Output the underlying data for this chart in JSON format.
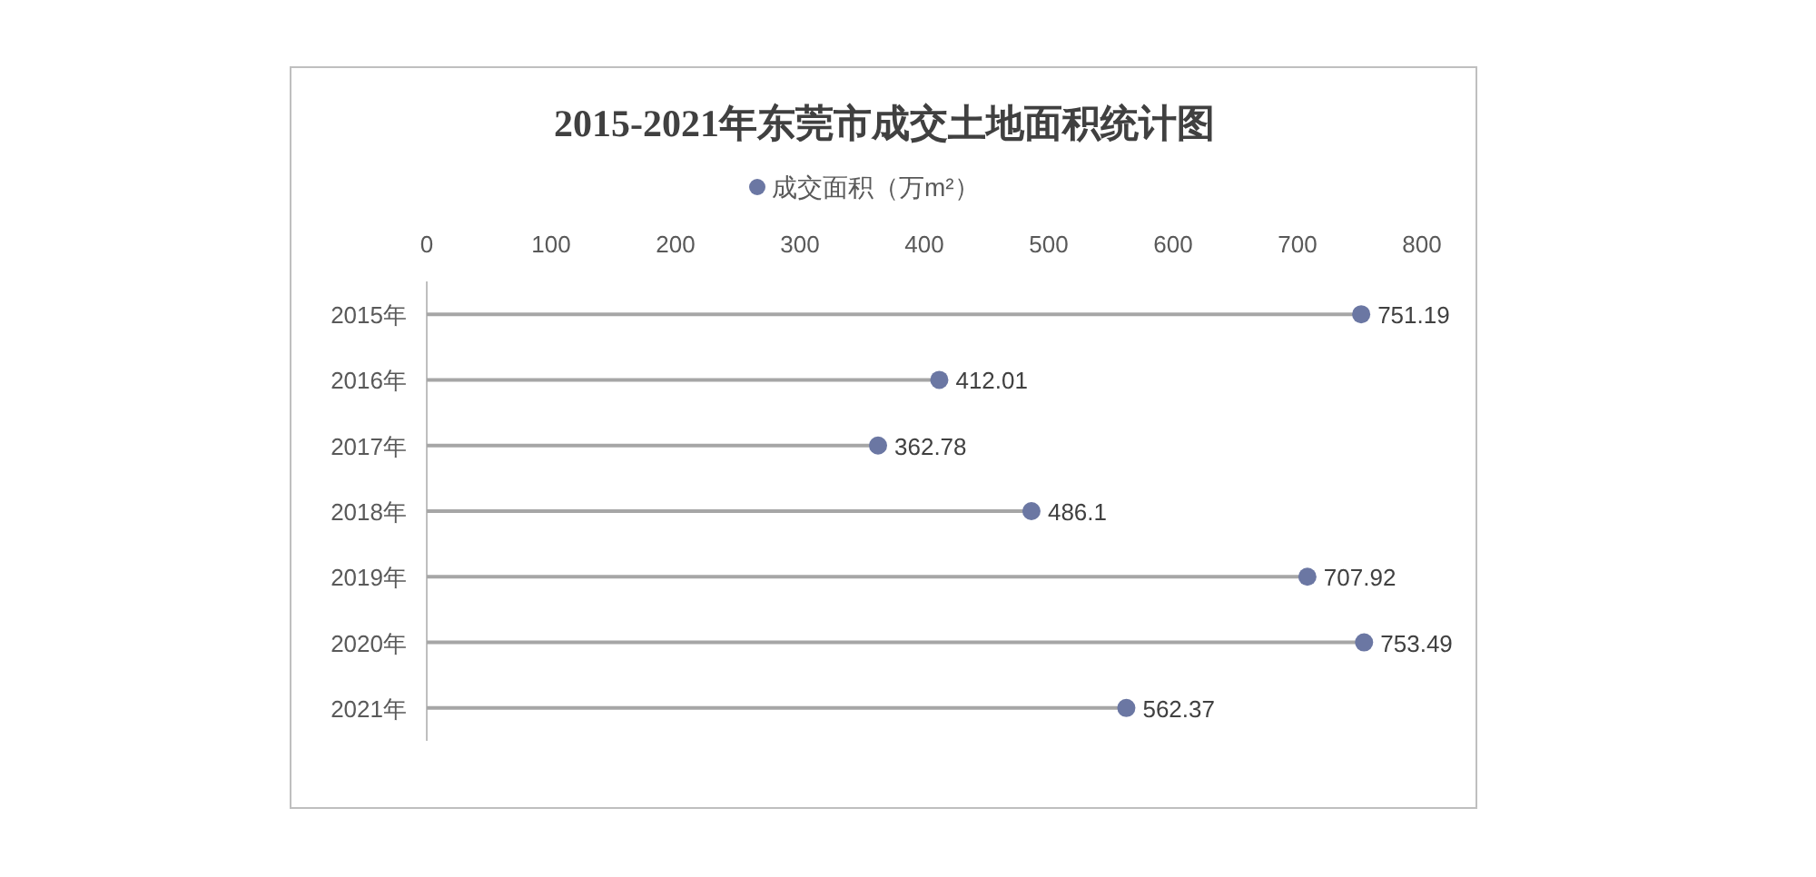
{
  "chart_data": {
    "type": "lollipop",
    "orientation": "horizontal",
    "title": "2015-2021年东莞市成交土地面积统计图",
    "categories": [
      "2015年",
      "2016年",
      "2017年",
      "2018年",
      "2019年",
      "2020年",
      "2021年"
    ],
    "series": [
      {
        "name": "成交面积（万m²）",
        "color": "#6b77a3",
        "values": [
          751.19,
          412.01,
          362.78,
          486.1,
          707.92,
          753.49,
          562.37
        ]
      }
    ],
    "xlim": [
      0,
      800
    ],
    "xticks": [
      0,
      100,
      200,
      300,
      400,
      500,
      600,
      700,
      800
    ],
    "data_labels": true,
    "legend": "top",
    "grid": false,
    "marker": "circle"
  }
}
